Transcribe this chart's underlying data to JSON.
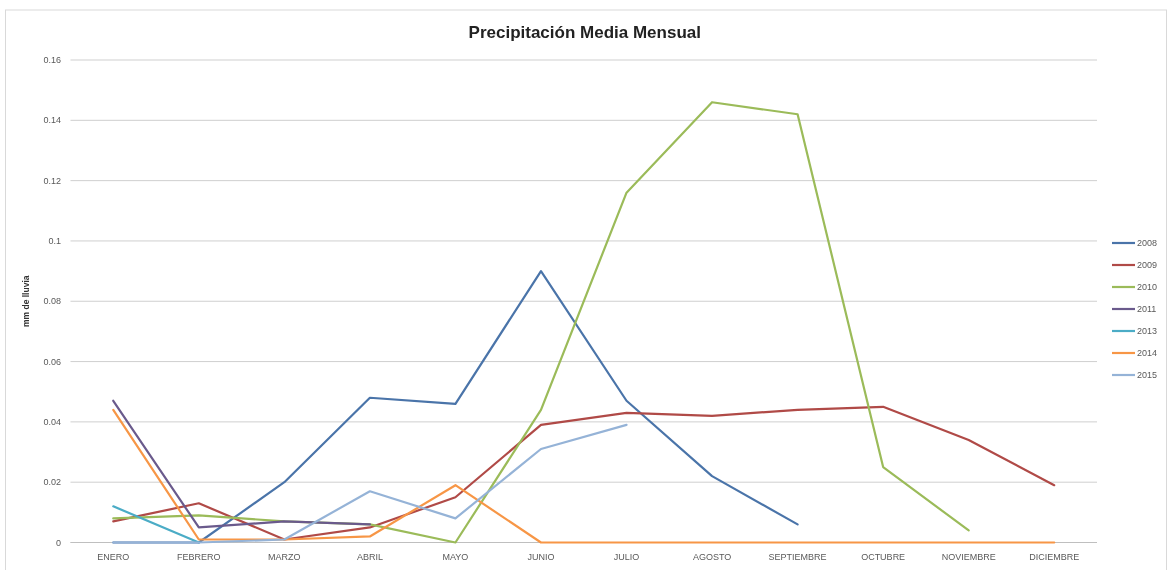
{
  "chart_data": {
    "type": "line",
    "title": "Precipitación Media Mensual",
    "ylabel": "mm de lluvia",
    "categories": [
      "ENERO",
      "FEBRERO",
      "MARZO",
      "ABRIL",
      "MAYO",
      "JUNIO",
      "JULIO",
      "AGOSTO",
      "SEPTIEMBRE",
      "OCTUBRE",
      "NOVIEMBRE",
      "DICIEMBRE"
    ],
    "series": [
      {
        "name": "2008",
        "color": "#4a74a9",
        "values": [
          0,
          0,
          0.02,
          0.048,
          0.046,
          0.09,
          0.047,
          0.022,
          0.006,
          null,
          null,
          null
        ]
      },
      {
        "name": "2009",
        "color": "#b04a47",
        "values": [
          0.007,
          0.013,
          0.001,
          0.005,
          0.015,
          0.039,
          0.043,
          0.042,
          0.044,
          0.045,
          0.034,
          0.019
        ]
      },
      {
        "name": "2010",
        "color": "#9bbb59",
        "values": [
          0.008,
          0.009,
          0.007,
          0.006,
          0,
          0.044,
          0.116,
          0.146,
          0.142,
          0.025,
          0.004,
          null
        ]
      },
      {
        "name": "2011",
        "color": "#6a5a8c",
        "values": [
          0.047,
          0.005,
          0.007,
          0.006,
          null,
          null,
          null,
          null,
          null,
          null,
          null,
          null
        ]
      },
      {
        "name": "2013",
        "color": "#4bacc6",
        "values": [
          0.012,
          0,
          null,
          null,
          null,
          null,
          null,
          null,
          null,
          null,
          null,
          null
        ]
      },
      {
        "name": "2014",
        "color": "#f79646",
        "values": [
          0.044,
          0.001,
          0.001,
          0.002,
          0.019,
          0,
          0,
          0,
          0,
          0,
          0,
          0
        ]
      },
      {
        "name": "2015",
        "color": "#95b3d7",
        "values": [
          0,
          0,
          0.001,
          0.017,
          0.008,
          0.031,
          0.039,
          null,
          null,
          null,
          null,
          null
        ]
      }
    ],
    "ylim": [
      0,
      0.16
    ],
    "yticks": [
      0,
      0.02,
      0.04,
      0.06,
      0.08,
      0.1,
      0.12,
      0.14,
      0.16
    ],
    "grid": "y",
    "legend": "right",
    "marker": "none"
  }
}
